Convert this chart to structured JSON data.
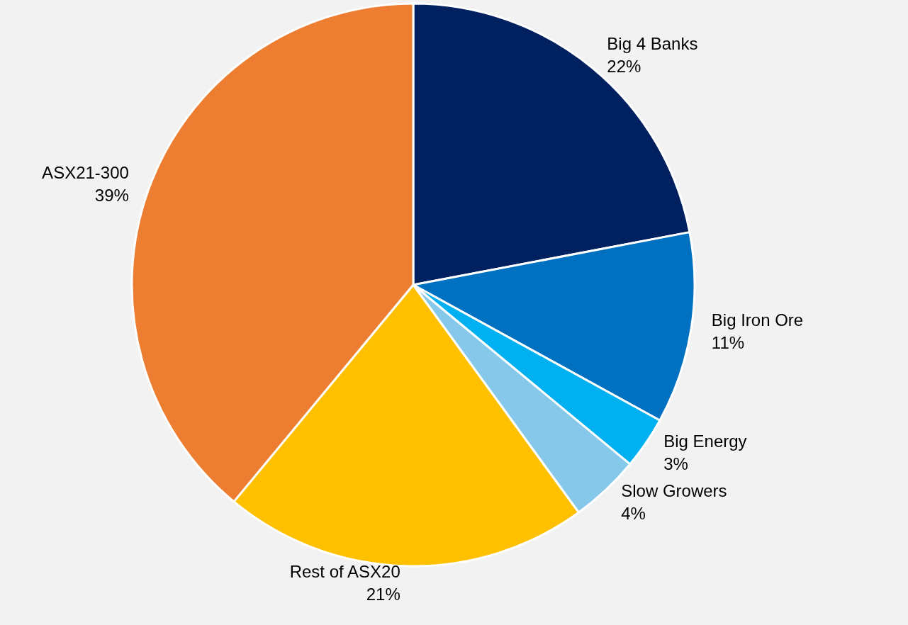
{
  "chart_data": {
    "type": "pie",
    "categories": [
      "Big 4 Banks",
      "Big Iron Ore",
      "Big Energy",
      "Slow Growers",
      "Rest of ASX20",
      "ASX21-300"
    ],
    "values": [
      22,
      11,
      3,
      4,
      21,
      39
    ],
    "value_labels": [
      "22%",
      "11%",
      "3%",
      "4%",
      "21%",
      "39%"
    ],
    "colors": [
      "#002060",
      "#0070c0",
      "#00b0f0",
      "#85c8ea",
      "#ffc000",
      "#ed7d31"
    ]
  }
}
